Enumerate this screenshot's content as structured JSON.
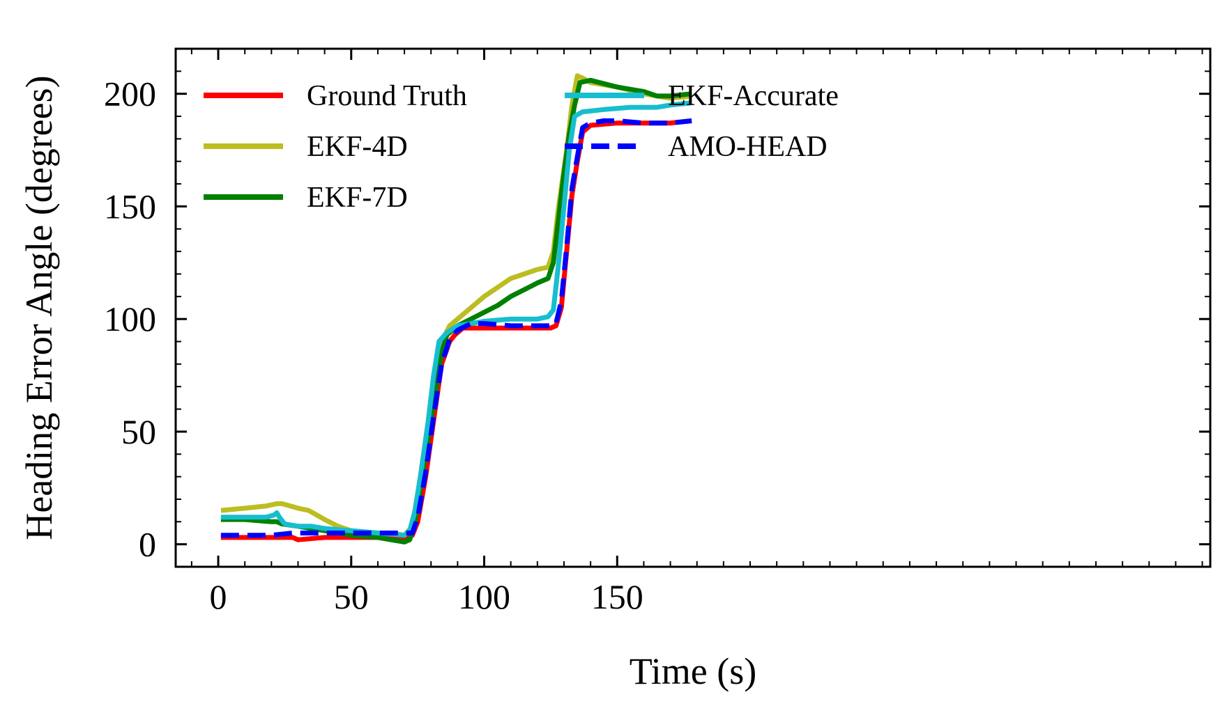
{
  "chart_data": {
    "type": "line",
    "title": "",
    "xlabel": "Time (s)",
    "ylabel": "Heading Error Angle (degrees)",
    "xlim": [
      -16,
      373
    ],
    "ylim": [
      -10,
      220
    ],
    "xticks": [
      0,
      50,
      100,
      150
    ],
    "yticks": [
      0,
      50,
      100,
      150,
      200
    ],
    "grid": false,
    "legend": "top-left, two columns",
    "series": [
      {
        "name": "Ground Truth",
        "color": "#ff0000",
        "style": "solid",
        "points": [
          [
            1,
            3
          ],
          [
            20,
            3
          ],
          [
            28,
            3
          ],
          [
            30,
            2
          ],
          [
            40,
            3
          ],
          [
            60,
            3
          ],
          [
            70,
            3
          ],
          [
            73,
            4
          ],
          [
            75,
            10
          ],
          [
            78,
            30
          ],
          [
            81,
            55
          ],
          [
            84,
            80
          ],
          [
            87,
            90
          ],
          [
            89,
            93
          ],
          [
            92,
            96
          ],
          [
            100,
            96
          ],
          [
            110,
            96
          ],
          [
            120,
            96
          ],
          [
            125,
            96
          ],
          [
            127,
            97
          ],
          [
            129,
            105
          ],
          [
            131,
            130
          ],
          [
            133,
            155
          ],
          [
            135,
            170
          ],
          [
            137,
            183
          ],
          [
            140,
            186
          ],
          [
            150,
            187
          ],
          [
            160,
            187
          ],
          [
            170,
            187
          ],
          [
            178,
            188
          ]
        ]
      },
      {
        "name": "EKF-4D",
        "color": "#bcbd22",
        "style": "solid",
        "points": [
          [
            1,
            15
          ],
          [
            10,
            16
          ],
          [
            18,
            17
          ],
          [
            22,
            18
          ],
          [
            24,
            18
          ],
          [
            30,
            16
          ],
          [
            34,
            15
          ],
          [
            40,
            11
          ],
          [
            45,
            8
          ],
          [
            50,
            6
          ],
          [
            60,
            5
          ],
          [
            65,
            5
          ],
          [
            70,
            4
          ],
          [
            73,
            8
          ],
          [
            76,
            30
          ],
          [
            79,
            55
          ],
          [
            81,
            75
          ],
          [
            84,
            90
          ],
          [
            87,
            97
          ],
          [
            90,
            100
          ],
          [
            95,
            105
          ],
          [
            100,
            110
          ],
          [
            105,
            114
          ],
          [
            110,
            118
          ],
          [
            115,
            120
          ],
          [
            120,
            122
          ],
          [
            124,
            123
          ],
          [
            126,
            130
          ],
          [
            128,
            150
          ],
          [
            131,
            175
          ],
          [
            133,
            195
          ],
          [
            135,
            208
          ],
          [
            137,
            207
          ],
          [
            140,
            205
          ],
          [
            150,
            203
          ],
          [
            160,
            200
          ],
          [
            170,
            198
          ],
          [
            178,
            199
          ]
        ]
      },
      {
        "name": "EKF-7D",
        "color": "#008000",
        "style": "solid",
        "points": [
          [
            1,
            11
          ],
          [
            10,
            11
          ],
          [
            20,
            10
          ],
          [
            22,
            10
          ],
          [
            24,
            9
          ],
          [
            30,
            8
          ],
          [
            40,
            6
          ],
          [
            50,
            4
          ],
          [
            60,
            3
          ],
          [
            65,
            2
          ],
          [
            70,
            1
          ],
          [
            72,
            2
          ],
          [
            74,
            10
          ],
          [
            76,
            25
          ],
          [
            78,
            40
          ],
          [
            80,
            55
          ],
          [
            82,
            70
          ],
          [
            84,
            85
          ],
          [
            86,
            93
          ],
          [
            90,
            97
          ],
          [
            95,
            100
          ],
          [
            100,
            103
          ],
          [
            105,
            106
          ],
          [
            110,
            110
          ],
          [
            115,
            113
          ],
          [
            120,
            116
          ],
          [
            124,
            118
          ],
          [
            126,
            125
          ],
          [
            128,
            145
          ],
          [
            130,
            165
          ],
          [
            132,
            182
          ],
          [
            134,
            195
          ],
          [
            136,
            205
          ],
          [
            140,
            206
          ],
          [
            150,
            203
          ],
          [
            160,
            201
          ],
          [
            165,
            199
          ],
          [
            170,
            199
          ],
          [
            178,
            200
          ]
        ]
      },
      {
        "name": "EKF-Accurate",
        "color": "#17becf",
        "style": "solid",
        "points": [
          [
            1,
            12
          ],
          [
            10,
            12
          ],
          [
            18,
            12
          ],
          [
            21,
            13
          ],
          [
            22,
            14
          ],
          [
            23,
            12
          ],
          [
            25,
            9
          ],
          [
            30,
            8
          ],
          [
            35,
            8
          ],
          [
            40,
            7
          ],
          [
            50,
            6
          ],
          [
            60,
            5
          ],
          [
            70,
            4
          ],
          [
            72,
            6
          ],
          [
            74,
            15
          ],
          [
            76,
            30
          ],
          [
            79,
            55
          ],
          [
            81,
            75
          ],
          [
            83,
            90
          ],
          [
            86,
            94
          ],
          [
            90,
            97
          ],
          [
            100,
            99
          ],
          [
            110,
            100
          ],
          [
            120,
            100
          ],
          [
            124,
            101
          ],
          [
            126,
            104
          ],
          [
            128,
            125
          ],
          [
            130,
            150
          ],
          [
            132,
            175
          ],
          [
            134,
            190
          ],
          [
            137,
            192
          ],
          [
            145,
            193
          ],
          [
            155,
            194
          ],
          [
            165,
            194
          ],
          [
            170,
            195
          ],
          [
            178,
            196
          ]
        ]
      },
      {
        "name": "AMO-HEAD",
        "color": "#0000ff",
        "style": "dashed",
        "points": [
          [
            1,
            4
          ],
          [
            20,
            4
          ],
          [
            28,
            5
          ],
          [
            40,
            5
          ],
          [
            55,
            5
          ],
          [
            65,
            5
          ],
          [
            70,
            5
          ],
          [
            73,
            5
          ],
          [
            75,
            12
          ],
          [
            78,
            32
          ],
          [
            81,
            57
          ],
          [
            84,
            80
          ],
          [
            87,
            91
          ],
          [
            90,
            95
          ],
          [
            95,
            98
          ],
          [
            100,
            98
          ],
          [
            110,
            97
          ],
          [
            120,
            97
          ],
          [
            125,
            97
          ],
          [
            127,
            98
          ],
          [
            129,
            108
          ],
          [
            131,
            132
          ],
          [
            133,
            158
          ],
          [
            135,
            172
          ],
          [
            137,
            185
          ],
          [
            140,
            187
          ],
          [
            145,
            188
          ],
          [
            150,
            188
          ],
          [
            160,
            187
          ],
          [
            170,
            187
          ],
          [
            178,
            188
          ]
        ]
      }
    ]
  }
}
